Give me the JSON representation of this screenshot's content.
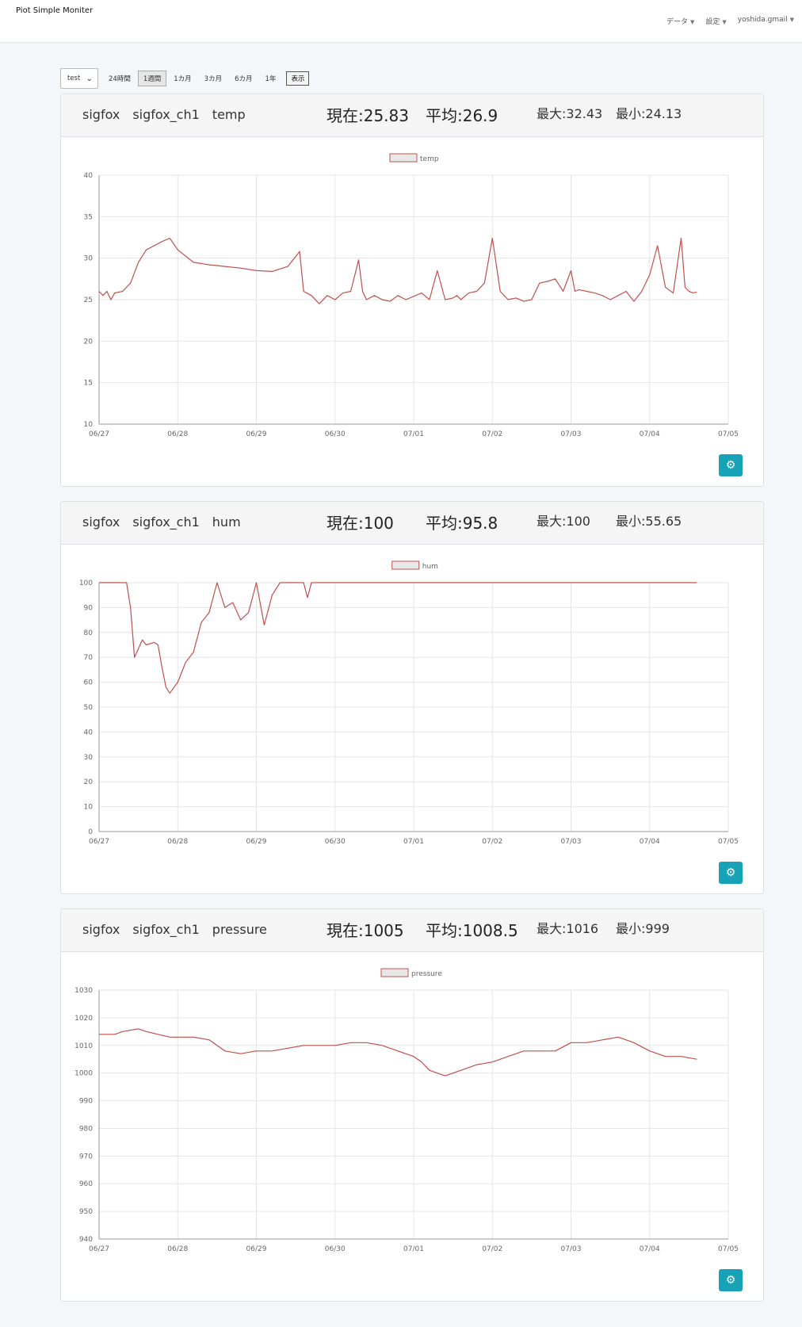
{
  "app": {
    "title": "Piot Simple Moniter"
  },
  "nav": {
    "items": [
      {
        "label": "データ"
      },
      {
        "label": "設定"
      },
      {
        "label": "yoshida.gmail"
      }
    ]
  },
  "toolbar": {
    "select_value": "test",
    "ranges": [
      {
        "label": "24時間",
        "active": false
      },
      {
        "label": "1週間",
        "active": true
      },
      {
        "label": "1カ月",
        "active": false
      },
      {
        "label": "3カ月",
        "active": false
      },
      {
        "label": "6カ月",
        "active": false
      },
      {
        "label": "1年",
        "active": false
      }
    ],
    "show_label": "表示"
  },
  "colors": {
    "line": "#c0504d",
    "accent": "#17a2b8"
  },
  "charts": [
    {
      "name": "sigfox　sigfox_ch1　temp",
      "current": "現在:25.83",
      "average": "平均:26.9",
      "max": "最大:32.43",
      "min": "最小:24.13",
      "gear_icon": "gear-icon"
    },
    {
      "name": "sigfox　sigfox_ch1　hum",
      "current": "現在:100",
      "average": "平均:95.8",
      "max": "最大:100",
      "min": "最小:55.65",
      "gear_icon": "gear-icon"
    },
    {
      "name": "sigfox　sigfox_ch1　pressure",
      "current": "現在:1005",
      "average": "平均:1008.5",
      "max": "最大:1016",
      "min": "最小:999",
      "gear_icon": "gear-icon"
    }
  ],
  "chart_data": [
    {
      "type": "line",
      "legend": "temp",
      "xticks": [
        "06/27",
        "06/28",
        "06/29",
        "06/30",
        "07/01",
        "07/02",
        "07/03",
        "07/04",
        "07/05"
      ],
      "ylim": [
        10,
        40
      ],
      "yticks": [
        10,
        15,
        20,
        25,
        30,
        35,
        40
      ],
      "grid": true,
      "legend_position": "top",
      "series": [
        {
          "name": "temp",
          "x": [
            0,
            0.05,
            0.1,
            0.15,
            0.2,
            0.3,
            0.4,
            0.5,
            0.6,
            0.7,
            0.8,
            0.9,
            1.0,
            1.2,
            1.4,
            1.6,
            1.8,
            2.0,
            2.2,
            2.4,
            2.55,
            2.6,
            2.7,
            2.8,
            2.9,
            3.0,
            3.1,
            3.2,
            3.3,
            3.35,
            3.4,
            3.5,
            3.6,
            3.7,
            3.8,
            3.9,
            4.0,
            4.1,
            4.2,
            4.3,
            4.4,
            4.5,
            4.55,
            4.6,
            4.7,
            4.8,
            4.9,
            5.0,
            5.1,
            5.2,
            5.3,
            5.4,
            5.5,
            5.6,
            5.7,
            5.8,
            5.9,
            6.0,
            6.05,
            6.1,
            6.2,
            6.3,
            6.4,
            6.5,
            6.6,
            6.7,
            6.8,
            6.9,
            7.0,
            7.1,
            7.2,
            7.3,
            7.4,
            7.45,
            7.5,
            7.55,
            7.6
          ],
          "values": [
            26,
            25.5,
            26,
            25,
            25.8,
            26,
            27,
            29.5,
            31,
            31.5,
            32,
            32.4,
            31,
            29.5,
            29.2,
            29,
            28.8,
            28.5,
            28.4,
            29,
            30.8,
            26,
            25.5,
            24.5,
            25.5,
            25,
            25.8,
            26,
            29.8,
            26,
            25,
            25.5,
            25,
            24.8,
            25.5,
            25,
            25.4,
            25.8,
            25,
            28.5,
            25,
            25.2,
            25.5,
            25,
            25.8,
            26,
            27,
            32.4,
            26,
            25,
            25.2,
            24.8,
            25,
            27,
            27.2,
            27.5,
            26,
            28.5,
            26,
            26.2,
            26,
            25.8,
            25.5,
            25,
            25.5,
            26,
            24.8,
            26,
            28,
            31.5,
            26.5,
            25.8,
            32.4,
            26.5,
            26,
            25.83,
            25.9
          ]
        }
      ]
    },
    {
      "type": "line",
      "legend": "hum",
      "xticks": [
        "06/27",
        "06/28",
        "06/29",
        "06/30",
        "07/01",
        "07/02",
        "07/03",
        "07/04",
        "07/05"
      ],
      "ylim": [
        0,
        100
      ],
      "yticks": [
        0,
        10,
        20,
        30,
        40,
        50,
        60,
        70,
        80,
        90,
        100
      ],
      "grid": true,
      "legend_position": "top",
      "series": [
        {
          "name": "hum",
          "x": [
            0,
            0.2,
            0.35,
            0.4,
            0.45,
            0.55,
            0.6,
            0.7,
            0.75,
            0.8,
            0.85,
            0.9,
            1.0,
            1.1,
            1.2,
            1.3,
            1.4,
            1.5,
            1.6,
            1.7,
            1.8,
            1.9,
            2.0,
            2.1,
            2.2,
            2.3,
            2.4,
            2.5,
            2.6,
            2.65,
            2.7,
            2.75,
            2.8,
            3.0,
            4.0,
            5.0,
            6.0,
            7.0,
            7.6
          ],
          "values": [
            100,
            100,
            100,
            90,
            70,
            77,
            75,
            76,
            75,
            66,
            58,
            55.65,
            60,
            68,
            72,
            84,
            88,
            100,
            90,
            92,
            85,
            88,
            100,
            83,
            95,
            100,
            100,
            100,
            100,
            94,
            100,
            100,
            100,
            100,
            100,
            100,
            100,
            100,
            100
          ]
        }
      ]
    },
    {
      "type": "line",
      "legend": "pressure",
      "xticks": [
        "06/27",
        "06/28",
        "06/29",
        "06/30",
        "07/01",
        "07/02",
        "07/03",
        "07/04",
        "07/05"
      ],
      "ylim": [
        940,
        1030
      ],
      "yticks": [
        940,
        950,
        960,
        970,
        980,
        990,
        1000,
        1010,
        1020,
        1030
      ],
      "grid": true,
      "legend_position": "top",
      "series": [
        {
          "name": "pressure",
          "x": [
            0,
            0.2,
            0.3,
            0.5,
            0.6,
            0.9,
            1.2,
            1.4,
            1.5,
            1.6,
            1.8,
            2.0,
            2.2,
            2.4,
            2.6,
            2.8,
            3.0,
            3.2,
            3.4,
            3.6,
            3.8,
            4.0,
            4.1,
            4.2,
            4.4,
            4.6,
            4.8,
            5.0,
            5.2,
            5.4,
            5.6,
            5.8,
            6.0,
            6.2,
            6.4,
            6.6,
            6.8,
            7.0,
            7.2,
            7.4,
            7.6
          ],
          "values": [
            1014,
            1014,
            1015,
            1016,
            1015,
            1013,
            1013,
            1012,
            1010,
            1008,
            1007,
            1008,
            1008,
            1009,
            1010,
            1010,
            1010,
            1011,
            1011,
            1010,
            1008,
            1006,
            1004,
            1001,
            999,
            1001,
            1003,
            1004,
            1006,
            1008,
            1008,
            1008,
            1011,
            1011,
            1012,
            1013,
            1011,
            1008,
            1006,
            1006,
            1005
          ]
        }
      ]
    }
  ]
}
